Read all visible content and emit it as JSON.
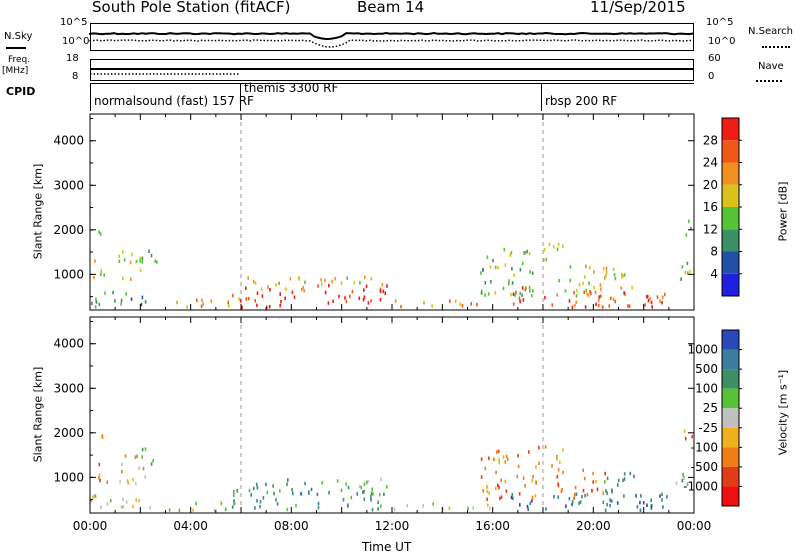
{
  "header": {
    "station": "South Pole Station (fitACF)",
    "beam": "Beam 14",
    "date": "11/Sep/2015"
  },
  "strip_panels": {
    "nsky_label": "N.Sky",
    "nsky_ticks": [
      "10^5",
      "10^0"
    ],
    "nsearch_label": "N.Search",
    "nsearch_ticks": [
      "10^5",
      "10^0"
    ],
    "freq_label": "Freq.",
    "freq_unit": "[MHz]",
    "freq_ticks": [
      "18",
      "8"
    ],
    "nave_label": "Nave",
    "nave_ticks": [
      "60",
      "0"
    ],
    "cpid_label": "CPID",
    "cpid_modes": [
      {
        "label": "normalsound (fast) 157 RF",
        "start_hour": 0
      },
      {
        "label": "themis 3300 RF",
        "start_hour": 6
      },
      {
        "label": "rbsp 200 RF",
        "start_hour": 18
      }
    ]
  },
  "chart_data": [
    {
      "type": "heatmap",
      "title": "",
      "ylabel": "Slant Range [km]",
      "xlabel": "",
      "y_ticks": [
        "1000",
        "2000",
        "3000",
        "4000"
      ],
      "ylim": [
        200,
        4600
      ],
      "xlim": [
        0,
        24
      ],
      "colorbar_label": "Power [dB]",
      "colorbar_ticks": [
        "4",
        "8",
        "12",
        "16",
        "20",
        "24",
        "28"
      ],
      "colorbar_range": [
        0,
        32
      ],
      "colors": [
        "#1f1fe0",
        "#2050a8",
        "#3c8f68",
        "#56c236",
        "#d9c21a",
        "#f09020",
        "#f05818",
        "#ee1c14"
      ],
      "reference_lines_hours": [
        6,
        18
      ],
      "scatter_regions": [
        {
          "t0": 0.1,
          "t1": 0.7,
          "r0": 850,
          "r1": 1300,
          "level": 4
        },
        {
          "t0": 0.1,
          "t1": 0.5,
          "r0": 1650,
          "r1": 1950,
          "level": 2
        },
        {
          "t0": 1.1,
          "t1": 2.2,
          "r0": 850,
          "r1": 1500,
          "level": 4
        },
        {
          "t0": 1.8,
          "t1": 2.7,
          "r0": 1250,
          "r1": 1650,
          "level": 3
        },
        {
          "t0": 0.0,
          "t1": 2.5,
          "r0": 250,
          "r1": 600,
          "level": 2
        },
        {
          "t0": 3.0,
          "t1": 6.0,
          "r0": 250,
          "r1": 450,
          "level": 5
        },
        {
          "t0": 5.6,
          "t1": 8.2,
          "r0": 250,
          "r1": 700,
          "level": 7
        },
        {
          "t0": 6.2,
          "t1": 8.8,
          "r0": 600,
          "r1": 950,
          "level": 4
        },
        {
          "t0": 9.0,
          "t1": 11.8,
          "r0": 250,
          "r1": 750,
          "level": 7
        },
        {
          "t0": 9.0,
          "t1": 11.8,
          "r0": 700,
          "r1": 950,
          "level": 4
        },
        {
          "t0": 12.0,
          "t1": 16.2,
          "r0": 250,
          "r1": 400,
          "level": 5
        },
        {
          "t0": 15.5,
          "t1": 17.8,
          "r0": 500,
          "r1": 1600,
          "level": 3
        },
        {
          "t0": 16.6,
          "t1": 17.6,
          "r0": 250,
          "r1": 700,
          "level": 7
        },
        {
          "t0": 17.8,
          "t1": 18.8,
          "r0": 1250,
          "r1": 1700,
          "level": 4
        },
        {
          "t0": 18.5,
          "t1": 20.5,
          "r0": 500,
          "r1": 1200,
          "level": 4
        },
        {
          "t0": 20.2,
          "t1": 21.6,
          "r0": 650,
          "r1": 1150,
          "level": 4
        },
        {
          "t0": 18.0,
          "t1": 23.0,
          "r0": 250,
          "r1": 650,
          "level": 6
        },
        {
          "t0": 21.8,
          "t1": 22.8,
          "r0": 250,
          "r1": 500,
          "level": 7
        },
        {
          "t0": 23.2,
          "t1": 23.9,
          "r0": 800,
          "r1": 1300,
          "level": 3
        },
        {
          "t0": 23.5,
          "t1": 23.9,
          "r0": 1800,
          "r1": 2200,
          "level": 3
        }
      ]
    },
    {
      "type": "heatmap",
      "title": "",
      "ylabel": "Slant Range [km]",
      "xlabel": "Time UT",
      "x_ticks": [
        "00:00",
        "04:00",
        "08:00",
        "12:00",
        "16:00",
        "20:00",
        "00:00"
      ],
      "y_ticks": [
        "1000",
        "2000",
        "3000",
        "4000"
      ],
      "ylim": [
        200,
        4600
      ],
      "xlim": [
        0,
        24
      ],
      "colorbar_label": "Velocity [m s⁻¹]",
      "colorbar_ticks": [
        "1000",
        "500",
        "100",
        "25",
        "-25",
        "-100",
        "-500",
        "-1000"
      ],
      "colors": [
        "#2a48b8",
        "#3c7c9c",
        "#3c8f68",
        "#56c236",
        "#c0c0c0",
        "#f0b020",
        "#f07c18",
        "#e23c14",
        "#ee1010"
      ],
      "reference_lines_hours": [
        6,
        18
      ],
      "scatter_regions": [
        {
          "t0": 0.1,
          "t1": 0.7,
          "r0": 850,
          "r1": 1300,
          "level": 6
        },
        {
          "t0": 0.1,
          "t1": 0.5,
          "r0": 1650,
          "r1": 1950,
          "level": 6
        },
        {
          "t0": 1.1,
          "t1": 2.2,
          "r0": 850,
          "r1": 1500,
          "level": 5
        },
        {
          "t0": 1.8,
          "t1": 2.7,
          "r0": 1250,
          "r1": 1650,
          "level": 3
        },
        {
          "t0": 0.0,
          "t1": 2.5,
          "r0": 250,
          "r1": 600,
          "level": 4
        },
        {
          "t0": 3.0,
          "t1": 6.0,
          "r0": 250,
          "r1": 450,
          "level": 4
        },
        {
          "t0": 5.6,
          "t1": 8.2,
          "r0": 250,
          "r1": 700,
          "level": 2
        },
        {
          "t0": 6.2,
          "t1": 8.8,
          "r0": 600,
          "r1": 950,
          "level": 2
        },
        {
          "t0": 9.0,
          "t1": 11.8,
          "r0": 250,
          "r1": 750,
          "level": 2
        },
        {
          "t0": 9.0,
          "t1": 11.8,
          "r0": 700,
          "r1": 950,
          "level": 3
        },
        {
          "t0": 12.0,
          "t1": 16.2,
          "r0": 250,
          "r1": 400,
          "level": 4
        },
        {
          "t0": 15.5,
          "t1": 17.8,
          "r0": 500,
          "r1": 1600,
          "level": 6
        },
        {
          "t0": 16.6,
          "t1": 17.6,
          "r0": 250,
          "r1": 700,
          "level": 1
        },
        {
          "t0": 17.8,
          "t1": 18.8,
          "r0": 1250,
          "r1": 1700,
          "level": 6
        },
        {
          "t0": 18.5,
          "t1": 20.5,
          "r0": 500,
          "r1": 1200,
          "level": 6
        },
        {
          "t0": 20.2,
          "t1": 21.6,
          "r0": 650,
          "r1": 1150,
          "level": 2
        },
        {
          "t0": 18.0,
          "t1": 23.0,
          "r0": 250,
          "r1": 650,
          "level": 1
        },
        {
          "t0": 21.8,
          "t1": 22.8,
          "r0": 250,
          "r1": 500,
          "level": 0
        },
        {
          "t0": 23.2,
          "t1": 23.9,
          "r0": 800,
          "r1": 1300,
          "level": 3
        },
        {
          "t0": 23.5,
          "t1": 23.9,
          "r0": 1800,
          "r1": 2200,
          "level": 6
        }
      ]
    }
  ]
}
